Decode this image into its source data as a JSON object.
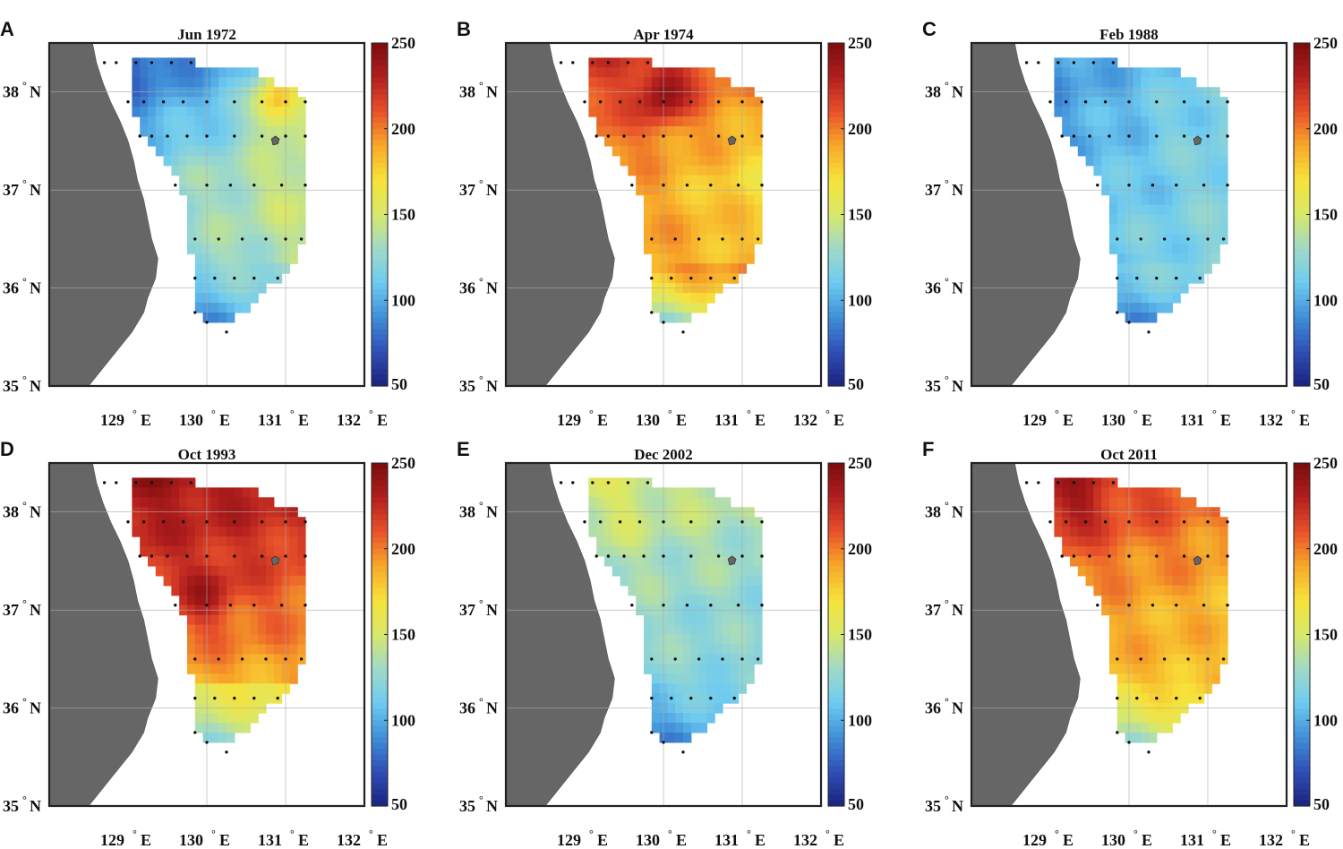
{
  "chart_data": {
    "type": "heatmap",
    "colorbar": {
      "range": [
        50,
        250
      ],
      "ticks": [
        "250",
        "200",
        "150",
        "100",
        "50"
      ],
      "colormap": [
        "#1a237e",
        "#2f4fb5",
        "#3f8fd8",
        "#6ecbf0",
        "#9fd9c8",
        "#d8e86a",
        "#f7e23a",
        "#f7a829",
        "#e8502a",
        "#b21e1e",
        "#7a0c0c"
      ]
    },
    "axes": {
      "lon_range": [
        128,
        132
      ],
      "lat_range": [
        35,
        38.5
      ],
      "x_ticks": [
        {
          "num": "129",
          "deg": "°",
          "hem": "E"
        },
        {
          "num": "130",
          "deg": "°",
          "hem": "E"
        },
        {
          "num": "131",
          "deg": "°",
          "hem": "E"
        },
        {
          "num": "132",
          "deg": "°",
          "hem": "E"
        }
      ],
      "y_ticks": [
        {
          "num": "38",
          "deg": "°",
          "hem": "N"
        },
        {
          "num": "37",
          "deg": "°",
          "hem": "N"
        },
        {
          "num": "36",
          "deg": "°",
          "hem": "N"
        },
        {
          "num": "35",
          "deg": "°",
          "hem": "N"
        }
      ]
    },
    "colors": {
      "land": "#666666",
      "dots": "#111111",
      "frame": "#222222"
    },
    "panels": [
      {
        "letter": "A",
        "title": "Jun 1972",
        "field": {
          "nw": 70,
          "ne": 120,
          "e": 150,
          "w": 115,
          "c": 125,
          "s": 60,
          "se": 120,
          "hot": [
            130.9,
            37.9,
            185
          ]
        }
      },
      {
        "letter": "B",
        "title": "Apr 1974",
        "field": {
          "nw": 220,
          "ne": 205,
          "e": 170,
          "w": 200,
          "c": 195,
          "s": 80,
          "se": 170,
          "hot": [
            130.0,
            38.0,
            245
          ]
        }
      },
      {
        "letter": "C",
        "title": "Feb 1988",
        "field": {
          "nw": 90,
          "ne": 120,
          "e": 120,
          "w": 100,
          "c": 120,
          "s": 75,
          "se": 100,
          "hot": [
            130.5,
            37.5,
            115
          ]
        }
      },
      {
        "letter": "D",
        "title": "Oct 1993",
        "field": {
          "nw": 240,
          "ne": 230,
          "e": 205,
          "w": 215,
          "c": 165,
          "s": 100,
          "se": 150,
          "hot": [
            130.0,
            37.2,
            235
          ]
        }
      },
      {
        "letter": "E",
        "title": "Dec 2002",
        "field": {
          "nw": 150,
          "ne": 140,
          "e": 125,
          "w": 130,
          "c": 115,
          "s": 70,
          "se": 105,
          "hot": [
            129.5,
            38.1,
            150
          ]
        }
      },
      {
        "letter": "F",
        "title": "Oct 2011",
        "field": {
          "nw": 230,
          "ne": 205,
          "e": 185,
          "w": 195,
          "c": 175,
          "s": 100,
          "se": 160,
          "hot": [
            129.3,
            38.1,
            235
          ]
        }
      }
    ],
    "stations": [
      [
        128.7,
        38.3
      ],
      [
        128.85,
        38.3
      ],
      [
        129.1,
        38.3
      ],
      [
        129.3,
        38.3
      ],
      [
        129.55,
        38.3
      ],
      [
        129.8,
        38.3
      ],
      [
        129.0,
        37.9
      ],
      [
        129.2,
        37.9
      ],
      [
        129.45,
        37.9
      ],
      [
        129.7,
        37.9
      ],
      [
        130.0,
        37.9
      ],
      [
        130.35,
        37.9
      ],
      [
        130.7,
        37.9
      ],
      [
        131.0,
        37.9
      ],
      [
        131.25,
        37.9
      ],
      [
        129.15,
        37.55
      ],
      [
        129.3,
        37.55
      ],
      [
        129.5,
        37.55
      ],
      [
        129.75,
        37.55
      ],
      [
        130.0,
        37.55
      ],
      [
        130.35,
        37.55
      ],
      [
        130.7,
        37.55
      ],
      [
        131.0,
        37.55
      ],
      [
        131.25,
        37.55
      ],
      [
        129.6,
        37.05
      ],
      [
        130.0,
        37.05
      ],
      [
        130.3,
        37.05
      ],
      [
        130.6,
        37.05
      ],
      [
        130.95,
        37.05
      ],
      [
        131.25,
        37.05
      ],
      [
        129.85,
        36.5
      ],
      [
        130.15,
        36.5
      ],
      [
        130.45,
        36.5
      ],
      [
        130.75,
        36.5
      ],
      [
        131.0,
        36.5
      ],
      [
        131.2,
        36.5
      ],
      [
        129.85,
        36.1
      ],
      [
        130.1,
        36.1
      ],
      [
        130.35,
        36.1
      ],
      [
        130.6,
        36.1
      ],
      [
        130.9,
        36.1
      ],
      [
        129.85,
        35.75
      ],
      [
        130.0,
        35.65
      ],
      [
        130.25,
        35.55
      ]
    ]
  }
}
